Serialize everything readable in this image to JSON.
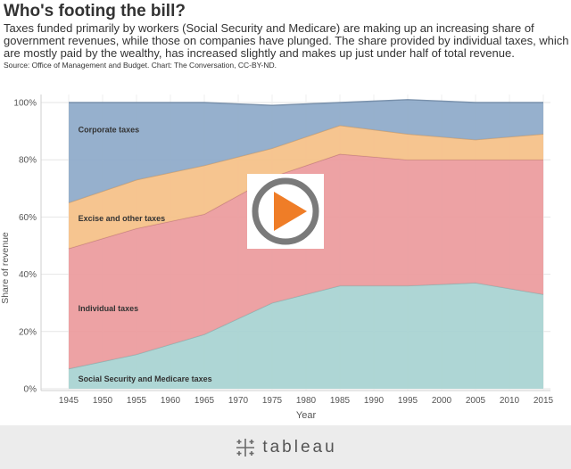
{
  "header": {
    "title": "Who's footing the bill?",
    "subtitle": "Taxes funded primarily by workers (Social Security and Medicare) are making up an increasing share of government revenues, while those on companies have plunged. The share provided by individual taxes, which are mostly paid by the wealthy, has increased slightly and makes up just under half of total revenue.",
    "source": "Source: Office of Management and Budget. Chart: The Conversation, CC-BY-ND."
  },
  "footer": {
    "brand": "tableau",
    "logo_icon": "tableau-cross-icon"
  },
  "play_button": {
    "icon": "play-icon",
    "ring_color": "#7a7a7a",
    "triangle_color": "#ef7d27"
  },
  "chart_data": {
    "type": "area",
    "stacked": true,
    "x": [
      1945,
      1955,
      1965,
      1975,
      1985,
      1995,
      2005,
      2015
    ],
    "xticks": [
      1945,
      1950,
      1955,
      1960,
      1965,
      1970,
      1975,
      1980,
      1985,
      1990,
      1995,
      2000,
      2005,
      2010,
      2015
    ],
    "xlabel": "Year",
    "ylabel": "Share of revenue",
    "ylim": [
      0,
      100
    ],
    "yticks": [
      0,
      20,
      40,
      60,
      80,
      100
    ],
    "ytick_labels": [
      "0%",
      "20%",
      "40%",
      "60%",
      "80%",
      "100%"
    ],
    "series": [
      {
        "name": "Social Security and Medicare taxes",
        "color": "#a7d3d1",
        "values": [
          7,
          12,
          19,
          30,
          36,
          36,
          37,
          33
        ]
      },
      {
        "name": "Individual taxes",
        "color": "#eb9a9c",
        "values": [
          42,
          44,
          42,
          44,
          46,
          44,
          43,
          47
        ]
      },
      {
        "name": "Excise and other taxes",
        "color": "#f5c087",
        "values": [
          16,
          17,
          17,
          10,
          10,
          9,
          7,
          9
        ]
      },
      {
        "name": "Corporate taxes",
        "color": "#8da9c9",
        "values": [
          35,
          27,
          22,
          15,
          8,
          12,
          13,
          11
        ]
      }
    ],
    "labels": [
      "Corporate taxes",
      "Excise and other taxes",
      "Individual taxes",
      "Social Security and Medicare taxes"
    ],
    "label_anchors": [
      {
        "text": "Social Security and Medicare taxes",
        "x": 1946,
        "y": 3.5
      },
      {
        "text": "Individual taxes",
        "x": 1946,
        "y": 28
      },
      {
        "text": "Excise and other taxes",
        "x": 1946,
        "y": 59.5
      },
      {
        "text": "Corporate taxes",
        "x": 1946,
        "y": 90.5
      }
    ]
  }
}
